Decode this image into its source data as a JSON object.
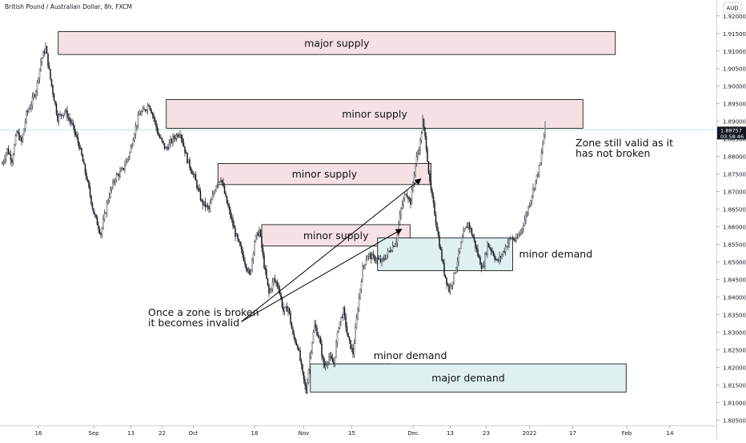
{
  "header": {
    "symbol_title": "British Pound / Australian Dollar, 8h, FXCM"
  },
  "colors": {
    "supply_fill": "#f5e1e3",
    "demand_fill": "#dff0f0",
    "zone_stroke": "#000000",
    "up_candle": "#ffffff",
    "down_candle": "#131722",
    "wick": "#131722",
    "price_line": "#4dc8c8",
    "price_label_bg": "#131722",
    "price_label_text": "#ffffff"
  },
  "chart_data": {
    "type": "candlestick",
    "title": "British Pound / Australian Dollar, 8h, FXCM",
    "y_axis": {
      "unit_label": "AUD",
      "ylim": [
        1.8035,
        1.9245
      ],
      "ticks": [
        1.92,
        1.915,
        1.91,
        1.905,
        1.9,
        1.895,
        1.89,
        1.885,
        1.88,
        1.875,
        1.87,
        1.865,
        1.86,
        1.855,
        1.85,
        1.845,
        1.84,
        1.835,
        1.83,
        1.825,
        1.82,
        1.815,
        1.81,
        1.805
      ],
      "tick_labels": [
        "1.92000",
        "1.91500",
        "1.91000",
        "1.90500",
        "1.90000",
        "1.89500",
        "1.89000",
        "1.88500",
        "1.88000",
        "1.87500",
        "1.87000",
        "1.86500",
        "1.86000",
        "1.85500",
        "1.85000",
        "1.84500",
        "1.84000",
        "1.83500",
        "1.83000",
        "1.82500",
        "1.82000",
        "1.81500",
        "1.81000",
        "1.80500"
      ]
    },
    "x_axis": {
      "ticks": [
        {
          "label": "16",
          "bar": 30
        },
        {
          "label": "Sep",
          "bar": 76
        },
        {
          "label": "13",
          "bar": 107
        },
        {
          "label": "22",
          "bar": 133
        },
        {
          "label": "Oct",
          "bar": 159
        },
        {
          "label": "18",
          "bar": 210
        },
        {
          "label": "Nov",
          "bar": 251
        },
        {
          "label": "15",
          "bar": 291
        },
        {
          "label": "Dec",
          "bar": 342
        },
        {
          "label": "13",
          "bar": 373
        },
        {
          "label": "23",
          "bar": 403
        },
        {
          "label": "2022",
          "bar": 439
        },
        {
          "label": "17",
          "bar": 475
        },
        {
          "label": "Feb",
          "bar": 520
        },
        {
          "label": "14",
          "bar": 556
        }
      ]
    },
    "last_price": {
      "value": 1.88757,
      "label": "1.88757",
      "countdown": "03:58:46"
    },
    "path_points": [
      [
        0,
        1.878
      ],
      [
        4,
        1.882
      ],
      [
        8,
        1.879
      ],
      [
        12,
        1.887
      ],
      [
        16,
        1.884
      ],
      [
        20,
        1.892
      ],
      [
        24,
        1.895
      ],
      [
        28,
        1.899
      ],
      [
        32,
        1.907
      ],
      [
        36,
        1.911
      ],
      [
        40,
        1.902
      ],
      [
        46,
        1.891
      ],
      [
        52,
        1.893
      ],
      [
        58,
        1.889
      ],
      [
        64,
        1.883
      ],
      [
        70,
        1.874
      ],
      [
        76,
        1.864
      ],
      [
        82,
        1.858
      ],
      [
        88,
        1.868
      ],
      [
        94,
        1.874
      ],
      [
        100,
        1.876
      ],
      [
        106,
        1.881
      ],
      [
        110,
        1.887
      ],
      [
        114,
        1.892
      ],
      [
        118,
        1.893
      ],
      [
        122,
        1.895
      ],
      [
        126,
        1.891
      ],
      [
        130,
        1.886
      ],
      [
        136,
        1.882
      ],
      [
        142,
        1.885
      ],
      [
        148,
        1.887
      ],
      [
        154,
        1.879
      ],
      [
        160,
        1.874
      ],
      [
        166,
        1.867
      ],
      [
        172,
        1.865
      ],
      [
        178,
        1.872
      ],
      [
        182,
        1.874
      ],
      [
        186,
        1.868
      ],
      [
        190,
        1.863
      ],
      [
        194,
        1.858
      ],
      [
        198,
        1.854
      ],
      [
        202,
        1.85
      ],
      [
        206,
        1.846
      ],
      [
        210,
        1.856
      ],
      [
        214,
        1.859
      ],
      [
        218,
        1.849
      ],
      [
        222,
        1.841
      ],
      [
        226,
        1.845
      ],
      [
        230,
        1.843
      ],
      [
        234,
        1.836
      ],
      [
        238,
        1.837
      ],
      [
        242,
        1.829
      ],
      [
        246,
        1.826
      ],
      [
        250,
        1.818
      ],
      [
        253,
        1.813
      ],
      [
        256,
        1.823
      ],
      [
        260,
        1.832
      ],
      [
        264,
        1.828
      ],
      [
        268,
        1.82
      ],
      [
        272,
        1.823
      ],
      [
        276,
        1.821
      ],
      [
        280,
        1.832
      ],
      [
        284,
        1.836
      ],
      [
        288,
        1.828
      ],
      [
        292,
        1.824
      ],
      [
        296,
        1.837
      ],
      [
        300,
        1.848
      ],
      [
        304,
        1.852
      ],
      [
        310,
        1.851
      ],
      [
        316,
        1.85
      ],
      [
        322,
        1.853
      ],
      [
        328,
        1.856
      ],
      [
        332,
        1.865
      ],
      [
        336,
        1.87
      ],
      [
        340,
        1.867
      ],
      [
        344,
        1.878
      ],
      [
        348,
        1.884
      ],
      [
        350,
        1.89
      ],
      [
        353,
        1.883
      ],
      [
        356,
        1.872
      ],
      [
        360,
        1.864
      ],
      [
        364,
        1.855
      ],
      [
        368,
        1.847
      ],
      [
        372,
        1.842
      ],
      [
        376,
        1.846
      ],
      [
        380,
        1.852
      ],
      [
        384,
        1.858
      ],
      [
        388,
        1.861
      ],
      [
        392,
        1.857
      ],
      [
        396,
        1.852
      ],
      [
        400,
        1.848
      ],
      [
        404,
        1.855
      ],
      [
        408,
        1.853
      ],
      [
        412,
        1.85
      ],
      [
        416,
        1.852
      ],
      [
        420,
        1.855
      ],
      [
        424,
        1.857
      ],
      [
        428,
        1.856
      ],
      [
        432,
        1.859
      ],
      [
        436,
        1.863
      ],
      [
        440,
        1.868
      ],
      [
        444,
        1.873
      ],
      [
        448,
        1.878
      ],
      [
        452,
        1.889
      ]
    ],
    "zones": [
      {
        "type": "supply",
        "label": "major supply",
        "top": 1.9155,
        "bottom": 1.909,
        "x_start": 46.5,
        "x_end": 510.5
      },
      {
        "type": "supply",
        "label": "minor supply",
        "top": 1.8962,
        "bottom": 1.888,
        "x_start": 136.5,
        "x_end": 483.5
      },
      {
        "type": "supply",
        "label": "minor supply",
        "top": 1.878,
        "bottom": 1.872,
        "x_start": 179.5,
        "x_end": 357
      },
      {
        "type": "supply",
        "label": "minor supply",
        "top": 1.8606,
        "bottom": 1.8545,
        "x_start": 216,
        "x_end": 339.5
      },
      {
        "type": "demand",
        "label": "minor demand",
        "top": 1.8568,
        "bottom": 1.8475,
        "x_start": 312.5,
        "x_end": 425
      },
      {
        "type": "demand",
        "label": "minor demand",
        "top": 1.821,
        "bottom": 1.8188,
        "x_start": 275.5,
        "x_end": 322.5
      },
      {
        "type": "demand",
        "label": "major demand",
        "top": 1.821,
        "bottom": 1.813,
        "x_start": 256.5,
        "x_end": 519.5
      }
    ],
    "annotations": [
      {
        "lines": [
          "Once a zone is broken",
          "it becomes invalid"
        ]
      },
      {
        "lines": [
          "Zone still valid as it",
          "has not broken"
        ]
      }
    ],
    "arrows": [
      {
        "from": [
          199,
          1.833
        ],
        "to": [
          348.5,
          1.8736
        ]
      },
      {
        "from": [
          199,
          1.833
        ],
        "to": [
          332.5,
          1.8593
        ]
      }
    ]
  }
}
